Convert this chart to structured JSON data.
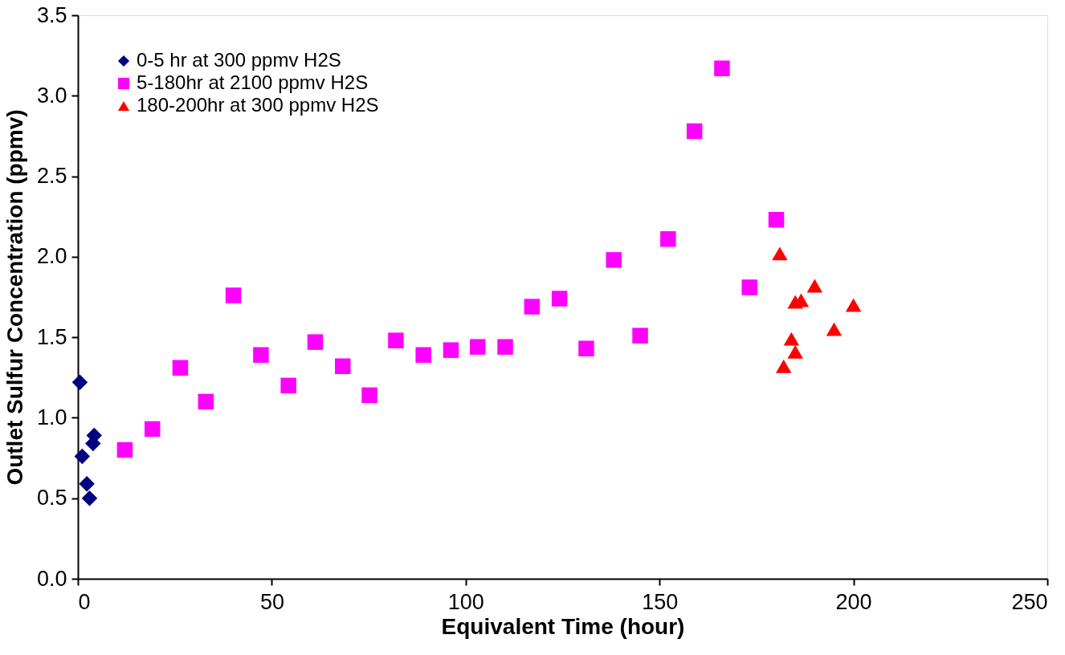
{
  "chart_data": {
    "type": "scatter",
    "xlabel": "Equivalent Time (hour)",
    "ylabel": "Outlet Sulfur Concentration (ppmv)",
    "xlim": [
      0,
      250
    ],
    "xticks": [
      0,
      50,
      100,
      150,
      200,
      250
    ],
    "ylim": [
      0,
      3.5
    ],
    "yticks": [
      {
        "value": 0,
        "label": "0.0"
      },
      {
        "value": 0.5,
        "label": "0.5"
      },
      {
        "value": 1,
        "label": "1.0"
      },
      {
        "value": 1.5,
        "label": "1.5"
      },
      {
        "value": 2,
        "label": "2.0"
      },
      {
        "value": 2.5,
        "label": "2.5"
      },
      {
        "value": 3,
        "label": "3.0"
      },
      {
        "value": 3.5,
        "label": "3.5"
      }
    ],
    "grid": false,
    "legend": "top left",
    "series": [
      {
        "name": "0-5 hr at 300 ppmv H2S",
        "color": "#000080",
        "marker": "diamond",
        "x": [
          0.5,
          1.1,
          2.3,
          3.0,
          3.9,
          4.2
        ],
        "values": [
          1.22,
          0.76,
          0.59,
          0.5,
          0.84,
          0.89
        ]
      },
      {
        "name": "5-180hr at 2100 ppmv H2S",
        "color": "#ff00ff",
        "marker": "square",
        "x": [
          12.1,
          19.2,
          26.4,
          33,
          40.1,
          47.2,
          54.3,
          61.2,
          68.3,
          75.2,
          82,
          89.1,
          96.2,
          103.1,
          110.2,
          117.1,
          124.2,
          131.1,
          138.2,
          145,
          152.2,
          159,
          166.1,
          173.2,
          180.1
        ],
        "values": [
          0.8,
          0.93,
          1.31,
          1.1,
          1.76,
          1.39,
          1.2,
          1.47,
          1.32,
          1.14,
          1.48,
          1.39,
          1.42,
          1.44,
          1.44,
          1.69,
          1.74,
          1.43,
          1.98,
          1.51,
          2.11,
          2.78,
          3.17,
          1.81,
          2.23
        ]
      },
      {
        "name": "180-200hr at 300 ppmv H2S",
        "color": "#ff0000",
        "marker": "triangle",
        "x": [
          181,
          182,
          184,
          185,
          185,
          186.5,
          190,
          195,
          200
        ],
        "values": [
          2.02,
          1.32,
          1.49,
          1.41,
          1.72,
          1.73,
          1.82,
          1.55,
          1.7
        ]
      }
    ]
  }
}
